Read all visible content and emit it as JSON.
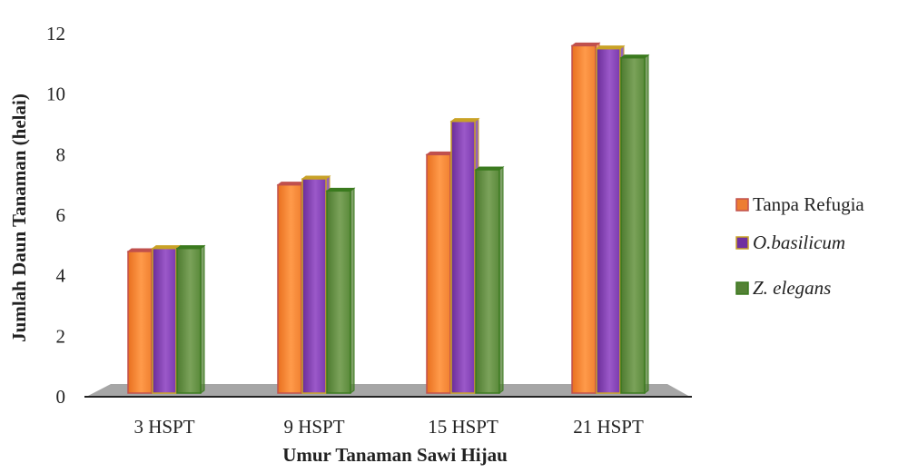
{
  "chart_data": {
    "type": "bar",
    "title": "",
    "xlabel": "Umur Tanaman Sawi Hijau",
    "ylabel": "Jumlah Daun Tanaman (helai)",
    "ylim": [
      0,
      12
    ],
    "yticks": [
      0,
      2,
      4,
      6,
      8,
      10,
      12
    ],
    "categories": [
      "3 HSPT",
      "9 HSPT",
      "15 HSPT",
      "21 HSPT"
    ],
    "series": [
      {
        "name": "Tanpa Refugia",
        "italic": false,
        "color": "#ED7D31",
        "edge": "#C0504D",
        "values": [
          4.8,
          7.0,
          8.0,
          11.6
        ]
      },
      {
        "name": "O.basilicum",
        "italic": true,
        "color": "#7030A0",
        "edge": "#C9A227",
        "values": [
          4.9,
          7.2,
          9.1,
          11.5
        ]
      },
      {
        "name": "Z. elegans",
        "italic": true,
        "color": "#548235",
        "edge": "#3B7A1F",
        "values": [
          4.9,
          6.8,
          7.5,
          11.2
        ]
      }
    ],
    "grid": false,
    "legend_position": "right",
    "floor_color": "#A6A6A6"
  }
}
